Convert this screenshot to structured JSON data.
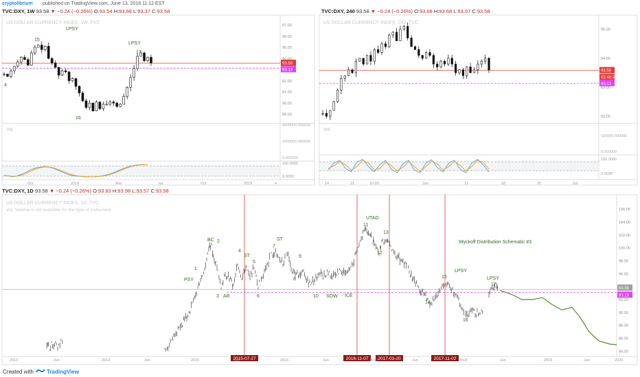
{
  "byline": {
    "author": "cryptolibrium",
    "text": "published on TradingView.com, June 13, 2018 11:12 EST"
  },
  "footer": {
    "created_with": "Created with",
    "brand": "TradingView"
  },
  "colors": {
    "accent_red": "#e53935",
    "magenta": "#e040fb",
    "green": "#33691e",
    "fib_green": "#558b2f",
    "stoch_blue": "#42a5f5",
    "stoch_orange": "#ff9800"
  },
  "panels": {
    "weekly": {
      "symbol": "TVC:DXY, 1W",
      "price": "93.58",
      "change": "−0.24 (−0.26%)",
      "o": "93.54",
      "h": "93.98",
      "l": "93.37",
      "c": "93.58",
      "watermark": "US DOLLAR CURRENCY INDEX, 1W, TVC",
      "price_axis": [
        "97.00",
        "96.00",
        "95.00",
        "94.00",
        "93.00",
        "92.00",
        "91.00",
        "90.00",
        "89.00"
      ],
      "current_label": "93.58",
      "dashed_label": "93.13",
      "vol_label": "Vol",
      "vol_axis": [
        "4000000.000000",
        "2000000.000000",
        "0.000000"
      ],
      "stoch_axis": [
        "100.0000",
        "0.0000"
      ],
      "time_axis": [
        "Oct",
        "2018",
        "Mar",
        "Jul",
        "Oct",
        "2019",
        "4"
      ],
      "annotations": [
        {
          "text": "LPSY",
          "x": 96,
          "y": 44
        },
        {
          "text": "15",
          "x": 50,
          "y": 60
        },
        {
          "text": "LPSY",
          "x": 187,
          "y": 65
        },
        {
          "text": "17",
          "x": 198,
          "y": 78
        },
        {
          "text": "4",
          "x": 6,
          "y": 126
        },
        {
          "text": "16",
          "x": 110,
          "y": 174
        }
      ]
    },
    "h4": {
      "symbol": "TVC:DXY, 240",
      "price": "93.58",
      "change": "−0.24 (−0.26%)",
      "o": "93.68",
      "h": "93.68",
      "l": "93.57",
      "c": "93.58",
      "watermark": "US DOLLAR CURRENCY INDEX, 240, TVC",
      "price_axis": [
        "95.00",
        "94.00",
        "93.00",
        "92.00"
      ],
      "current_label": "93.58",
      "timer_label": "02:48:31",
      "dashed_label": "93.13",
      "vol_label": "Vol",
      "vol_axis": [
        "100000.000000",
        "0.000000"
      ],
      "stoch_axis": [
        "100.0000",
        "0.0000"
      ],
      "time_axis": [
        "14",
        "21",
        "10:00",
        "Jun",
        "11",
        "18",
        "25",
        "Jul"
      ]
    },
    "daily": {
      "symbol": "TVC:DXY, 1D",
      "price": "93.58",
      "change": "−0.24 (−0.26%)",
      "o": "93.83",
      "h": "93.98",
      "l": "93.57",
      "c": "93.58",
      "watermark": "US DOLLAR CURRENCY INDEX, 1D, TVC",
      "warning": "Vol: Volume is not available for the type of instrument",
      "price_axis": [
        "106.00",
        "104.00",
        "102.00",
        "100.00",
        "98.00",
        "96.00",
        "94.00",
        "92.00",
        "90.00",
        "88.00",
        "86.00",
        "84.00"
      ],
      "current_label": "93.58",
      "dashed_label": "93.13",
      "time_axis": [
        "2013",
        "Jun",
        "2014",
        "Jun",
        "2015",
        "Jun",
        "2016",
        "Jun",
        "2017",
        "Jun",
        "2018",
        "Jun",
        "2019",
        "Jun",
        "2020"
      ],
      "date_markers": [
        "2015-07-27",
        "2016-11-07",
        "2017-03-20",
        "2017-11-02"
      ],
      "schematic_title": "Wyckoff Distribution Schematic #3",
      "annotations": [
        {
          "text": "PSY",
          "x": 268,
          "y": 410
        },
        {
          "text": "1",
          "x": 283,
          "y": 394
        },
        {
          "text": "BC",
          "x": 302,
          "y": 352
        },
        {
          "text": "2",
          "x": 316,
          "y": 354
        },
        {
          "text": "3",
          "x": 315,
          "y": 434
        },
        {
          "text": "AR",
          "x": 325,
          "y": 434
        },
        {
          "text": "4",
          "x": 347,
          "y": 368
        },
        {
          "text": "ST",
          "x": 355,
          "y": 375
        },
        {
          "text": "5",
          "x": 368,
          "y": 384
        },
        {
          "text": "6",
          "x": 374,
          "y": 434
        },
        {
          "text": "ST",
          "x": 403,
          "y": 351
        },
        {
          "text": "7",
          "x": 397,
          "y": 361
        },
        {
          "text": "8",
          "x": 427,
          "y": 409
        },
        {
          "text": "9",
          "x": 435,
          "y": 376
        },
        {
          "text": "10",
          "x": 456,
          "y": 434
        },
        {
          "text": "SOW",
          "x": 475,
          "y": 434
        },
        {
          "text": "ICE",
          "x": 502,
          "y": 433
        },
        {
          "text": "UTAD",
          "x": 533,
          "y": 320
        },
        {
          "text": "11",
          "x": 529,
          "y": 330
        },
        {
          "text": "13",
          "x": 558,
          "y": 341
        },
        {
          "text": "12",
          "x": 549,
          "y": 371
        },
        {
          "text": "15",
          "x": 643,
          "y": 406
        },
        {
          "text": "LPSY",
          "x": 662,
          "y": 397
        },
        {
          "text": "14",
          "x": 619,
          "y": 443
        },
        {
          "text": "16",
          "x": 674,
          "y": 469
        },
        {
          "text": "LPSY",
          "x": 709,
          "y": 408
        },
        {
          "text": "17",
          "x": 715,
          "y": 417
        }
      ]
    }
  },
  "chart_data": [
    {
      "type": "candlestick",
      "title": "US DOLLAR CURRENCY INDEX, 1W, TVC",
      "ylim": [
        88.3,
        97.4
      ],
      "current_price": 93.58,
      "dashed_level": 93.13,
      "close_path": [
        92.6,
        92.4,
        92.9,
        93.3,
        93.7,
        94.1,
        93.9,
        93.4,
        94.5,
        95.0,
        95.2,
        94.8,
        95.1,
        94.0,
        93.6,
        93.2,
        92.5,
        92.9,
        92.8,
        92.0,
        92.2,
        91.5,
        90.9,
        90.2,
        89.6,
        90.0,
        89.3,
        90.1,
        89.5,
        89.9,
        89.9,
        90.1,
        90.0,
        89.7,
        89.9,
        90.6,
        91.4,
        92.3,
        93.1,
        94.2,
        94.5,
        93.8,
        94.1,
        93.6
      ],
      "stoch_k": [
        20,
        15,
        10,
        14,
        24,
        34,
        50,
        62,
        70,
        74,
        77,
        73,
        66,
        55,
        43,
        32,
        22,
        16,
        13,
        11,
        9,
        9,
        10,
        12,
        16,
        22,
        30,
        40,
        52,
        63,
        73,
        81,
        86,
        90,
        90,
        88
      ],
      "stoch_d": [
        18,
        16,
        13,
        13,
        18,
        27,
        40,
        53,
        64,
        71,
        75,
        74,
        69,
        60,
        49,
        38,
        28,
        20,
        15,
        12,
        10,
        9,
        9,
        11,
        14,
        19,
        26,
        35,
        46,
        58,
        68,
        77,
        83,
        88,
        89,
        89
      ]
    },
    {
      "type": "candlestick",
      "title": "US DOLLAR CURRENCY INDEX, 240, TVC",
      "ylim": [
        91.8,
        95.3
      ],
      "current_price": 93.58,
      "dashed_level": 93.13,
      "close_path": [
        92.1,
        92.0,
        92.2,
        92.5,
        92.9,
        93.3,
        93.4,
        93.6,
        93.5,
        93.9,
        94.0,
        93.8,
        94.1,
        93.9,
        94.3,
        94.2,
        94.5,
        94.4,
        94.8,
        94.9,
        94.6,
        95.0,
        95.1,
        94.7,
        94.4,
        94.3,
        94.1,
        94.0,
        94.2,
        94.1,
        93.8,
        93.7,
        93.9,
        93.8,
        94.0,
        93.8,
        93.5,
        93.6,
        93.4,
        93.7,
        93.5,
        93.6,
        93.8,
        93.9,
        94.0,
        93.6
      ],
      "stoch_k": [
        30,
        70,
        85,
        40,
        20,
        75,
        90,
        50,
        20,
        60,
        85,
        35,
        15,
        65,
        85,
        30,
        15,
        70,
        88,
        45,
        20,
        70,
        85,
        35,
        15,
        70,
        90,
        60,
        20
      ],
      "stoch_d": [
        40,
        55,
        78,
        60,
        30,
        50,
        85,
        70,
        30,
        40,
        75,
        55,
        25,
        45,
        78,
        50,
        22,
        50,
        80,
        65,
        30,
        50,
        80,
        55,
        25,
        50,
        85,
        75,
        35
      ]
    },
    {
      "type": "candlestick",
      "title": "US DOLLAR CURRENCY INDEX, 1D, TVC",
      "ylim": [
        83.4,
        107.4
      ],
      "current_price": 93.58,
      "dashed_level": 93.13,
      "annotation": "Wyckoff Distribution Schematic #3",
      "vertical_markers": [
        "2015-07-27",
        "2016-11-07",
        "2017-03-20",
        "2017-11-02"
      ],
      "close_path_segments": [
        [
          [
            68,
            84.9
          ],
          [
            72,
            84.6
          ],
          [
            78,
            85.2
          ],
          [
            84,
            84.8
          ],
          [
            92,
            86.0
          ]
        ],
        [
          [
            240,
            84.1
          ],
          [
            248,
            85.2
          ],
          [
            256,
            86.3
          ],
          [
            264,
            88.0
          ],
          [
            272,
            89.3
          ],
          [
            280,
            91.2
          ],
          [
            288,
            93.8
          ],
          [
            292,
            95.0
          ],
          [
            298,
            96.4
          ],
          [
            304,
            99.7
          ],
          [
            308,
            100.2
          ],
          [
            312,
            98.0
          ],
          [
            316,
            97.3
          ],
          [
            322,
            94.2
          ],
          [
            328,
            96.0
          ],
          [
            334,
            95.2
          ],
          [
            340,
            94.3
          ],
          [
            346,
            97.6
          ],
          [
            352,
            94.8
          ],
          [
            358,
            97.3
          ],
          [
            364,
            95.5
          ],
          [
            370,
            97.0
          ],
          [
            376,
            94.3
          ],
          [
            382,
            95.0
          ],
          [
            388,
            97.0
          ],
          [
            394,
            99.0
          ],
          [
            400,
            99.3
          ],
          [
            406,
            98.6
          ],
          [
            412,
            97.5
          ],
          [
            418,
            99.5
          ],
          [
            424,
            96.6
          ],
          [
            430,
            96.1
          ],
          [
            436,
            95.5
          ],
          [
            442,
            96.2
          ],
          [
            448,
            94.8
          ],
          [
            454,
            94.4
          ],
          [
            460,
            95.5
          ],
          [
            466,
            96.2
          ],
          [
            472,
            95.7
          ],
          [
            478,
            96.3
          ],
          [
            484,
            95.5
          ],
          [
            490,
            95.9
          ],
          [
            496,
            96.6
          ],
          [
            502,
            95.8
          ],
          [
            508,
            96.6
          ],
          [
            514,
            97.6
          ],
          [
            520,
            100.1
          ],
          [
            526,
            101.5
          ],
          [
            530,
            102.5
          ],
          [
            534,
            103.0
          ],
          [
            538,
            102.3
          ],
          [
            542,
            101.2
          ],
          [
            546,
            100.4
          ],
          [
            552,
            99.0
          ],
          [
            556,
            100.7
          ],
          [
            562,
            101.3
          ],
          [
            566,
            100.6
          ],
          [
            572,
            99.5
          ],
          [
            578,
            98.8
          ],
          [
            584,
            98.2
          ],
          [
            590,
            97.4
          ],
          [
            596,
            96.5
          ],
          [
            602,
            95.0
          ],
          [
            608,
            94.0
          ],
          [
            614,
            93.2
          ],
          [
            620,
            92.5
          ],
          [
            626,
            91.5
          ],
          [
            632,
            91.9
          ],
          [
            638,
            93.0
          ],
          [
            644,
            94.2
          ],
          [
            650,
            94.5
          ],
          [
            656,
            93.7
          ],
          [
            662,
            93.2
          ],
          [
            668,
            92.0
          ],
          [
            674,
            90.4
          ],
          [
            680,
            89.6
          ],
          [
            686,
            90.5
          ],
          [
            692,
            90.0
          ],
          [
            698,
            89.8
          ],
          [
            704,
            90.3
          ]
        ],
        [
          [
            712,
            93.0
          ],
          [
            718,
            94.0
          ],
          [
            722,
            94.2
          ],
          [
            726,
            93.6
          ]
        ]
      ],
      "projection": [
        [
          728,
          93.4
        ],
        [
          745,
          92.8
        ],
        [
          760,
          92.0
        ],
        [
          775,
          92.0
        ],
        [
          790,
          92.3
        ],
        [
          803,
          91.3
        ],
        [
          818,
          90.4
        ],
        [
          833,
          90.8
        ],
        [
          845,
          89.2
        ],
        [
          858,
          87.0
        ],
        [
          872,
          85.6
        ],
        [
          888,
          85.1
        ],
        [
          898,
          85.0
        ]
      ]
    }
  ]
}
